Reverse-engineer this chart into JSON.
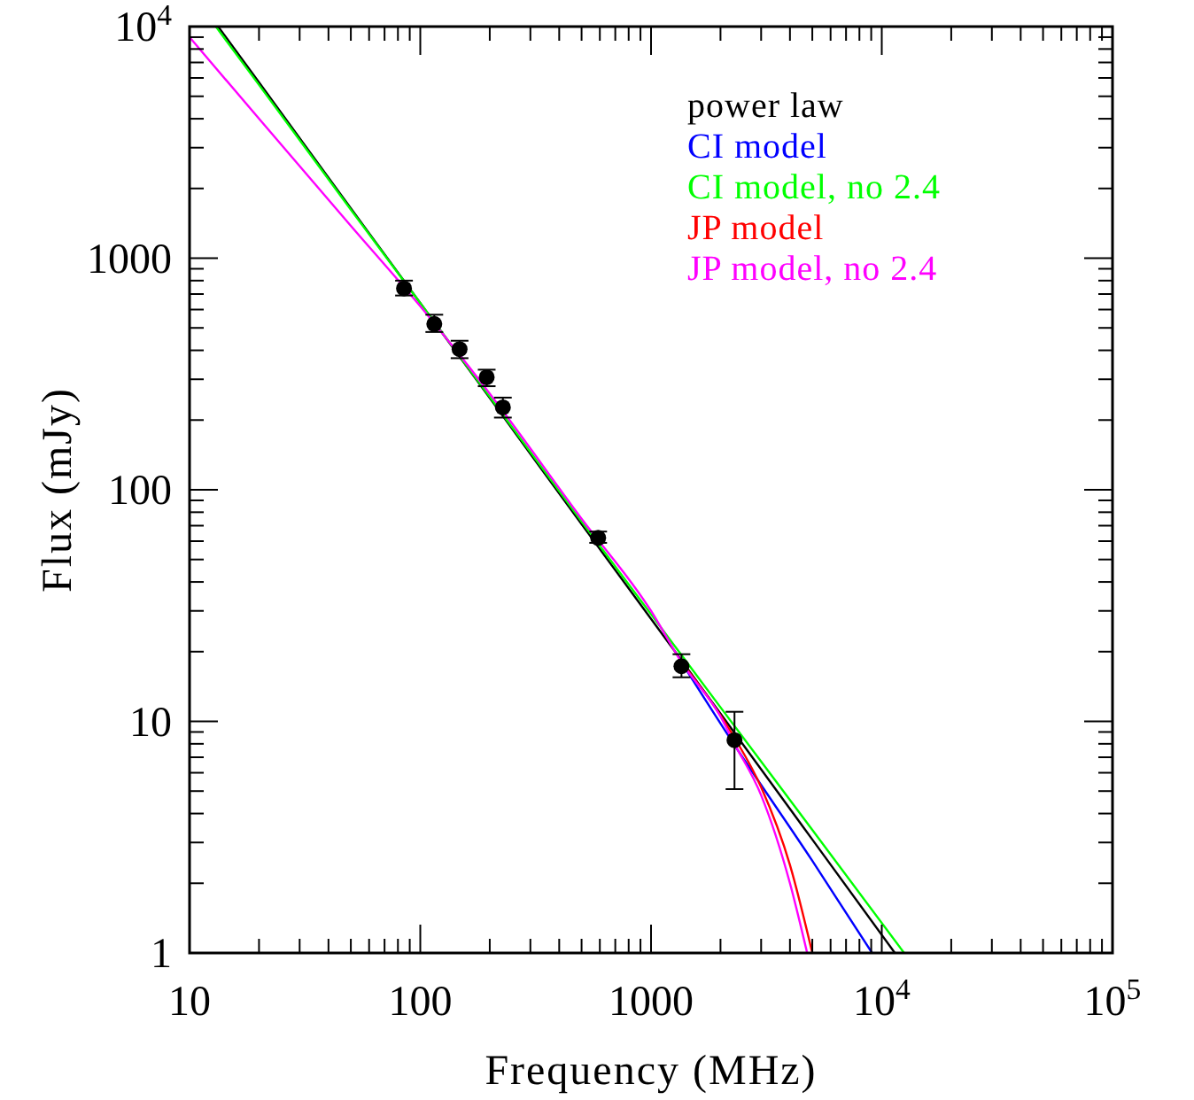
{
  "chart_data": {
    "type": "line",
    "xlabel": "Frequency (MHz)",
    "ylabel": "Flux (mJy)",
    "log": "xy",
    "legend": "top right",
    "marker": "none",
    "line_style": "solid",
    "xlim": [
      10,
      100000
    ],
    "xticks": [
      10,
      100,
      1000,
      {
        "value": 10000,
        "label": "10$^{4}$"
      },
      {
        "value": 100000,
        "label": "10$^{5}$"
      }
    ],
    "ylim": [
      1,
      10000
    ],
    "yticks": [
      1,
      10,
      100,
      1000,
      {
        "value": 10000,
        "label": "10$^{4}$"
      }
    ],
    "series": [
      {
        "name": "power law",
        "color": "#000000",
        "x": [
          13.3,
          20,
          50,
          100,
          200,
          500,
          1000,
          2000,
          5000,
          11400
        ],
        "values": [
          10000,
          5740,
          1640,
          640,
          249,
          71,
          27.7,
          10.8,
          3.09,
          1
        ]
      },
      {
        "name": "CI model",
        "color": "#0000ff",
        "x": [
          1355,
          2300,
          5000,
          9080
        ],
        "values": [
          18,
          7.9,
          2.5,
          1
        ]
      },
      {
        "name": "CI model, no 2.4",
        "color": "#00ff00",
        "x": [
          13,
          20,
          50,
          100,
          200,
          500,
          1000,
          2000,
          5000,
          12500
        ],
        "values": [
          10000,
          5600,
          1620,
          640,
          252,
          73,
          29,
          11.5,
          3.4,
          1
        ]
      },
      {
        "name": "JP model",
        "color": "#ff0000",
        "x": [
          1355,
          2300,
          3000,
          4000,
          5000
        ],
        "values": [
          18,
          8.5,
          5.2,
          2.4,
          1
        ]
      },
      {
        "name": "JP model, no 2.4",
        "color": "#ff00ff",
        "x": [
          10,
          20,
          50,
          100,
          200,
          500,
          1000,
          1355,
          2000,
          2300,
          3000,
          4000,
          4750
        ],
        "values": [
          9000,
          4000,
          1380,
          620,
          260,
          75,
          30,
          18,
          10.5,
          8,
          4.8,
          2,
          1
        ]
      },
      {
        "type": "scatter",
        "color": "#000000",
        "marker": "circle",
        "x": [
          85,
          115,
          148,
          194,
          228,
          590,
          1355,
          2300
        ],
        "values": [
          740,
          520,
          405,
          306,
          227,
          62,
          17.3,
          8.3
        ],
        "errors": [
          [
            690,
            800
          ],
          [
            480,
            570
          ],
          [
            370,
            440
          ],
          [
            280,
            330
          ],
          [
            205,
            250
          ],
          [
            59,
            66
          ],
          [
            15.5,
            19.5
          ],
          [
            5.1,
            11
          ]
        ]
      }
    ]
  }
}
